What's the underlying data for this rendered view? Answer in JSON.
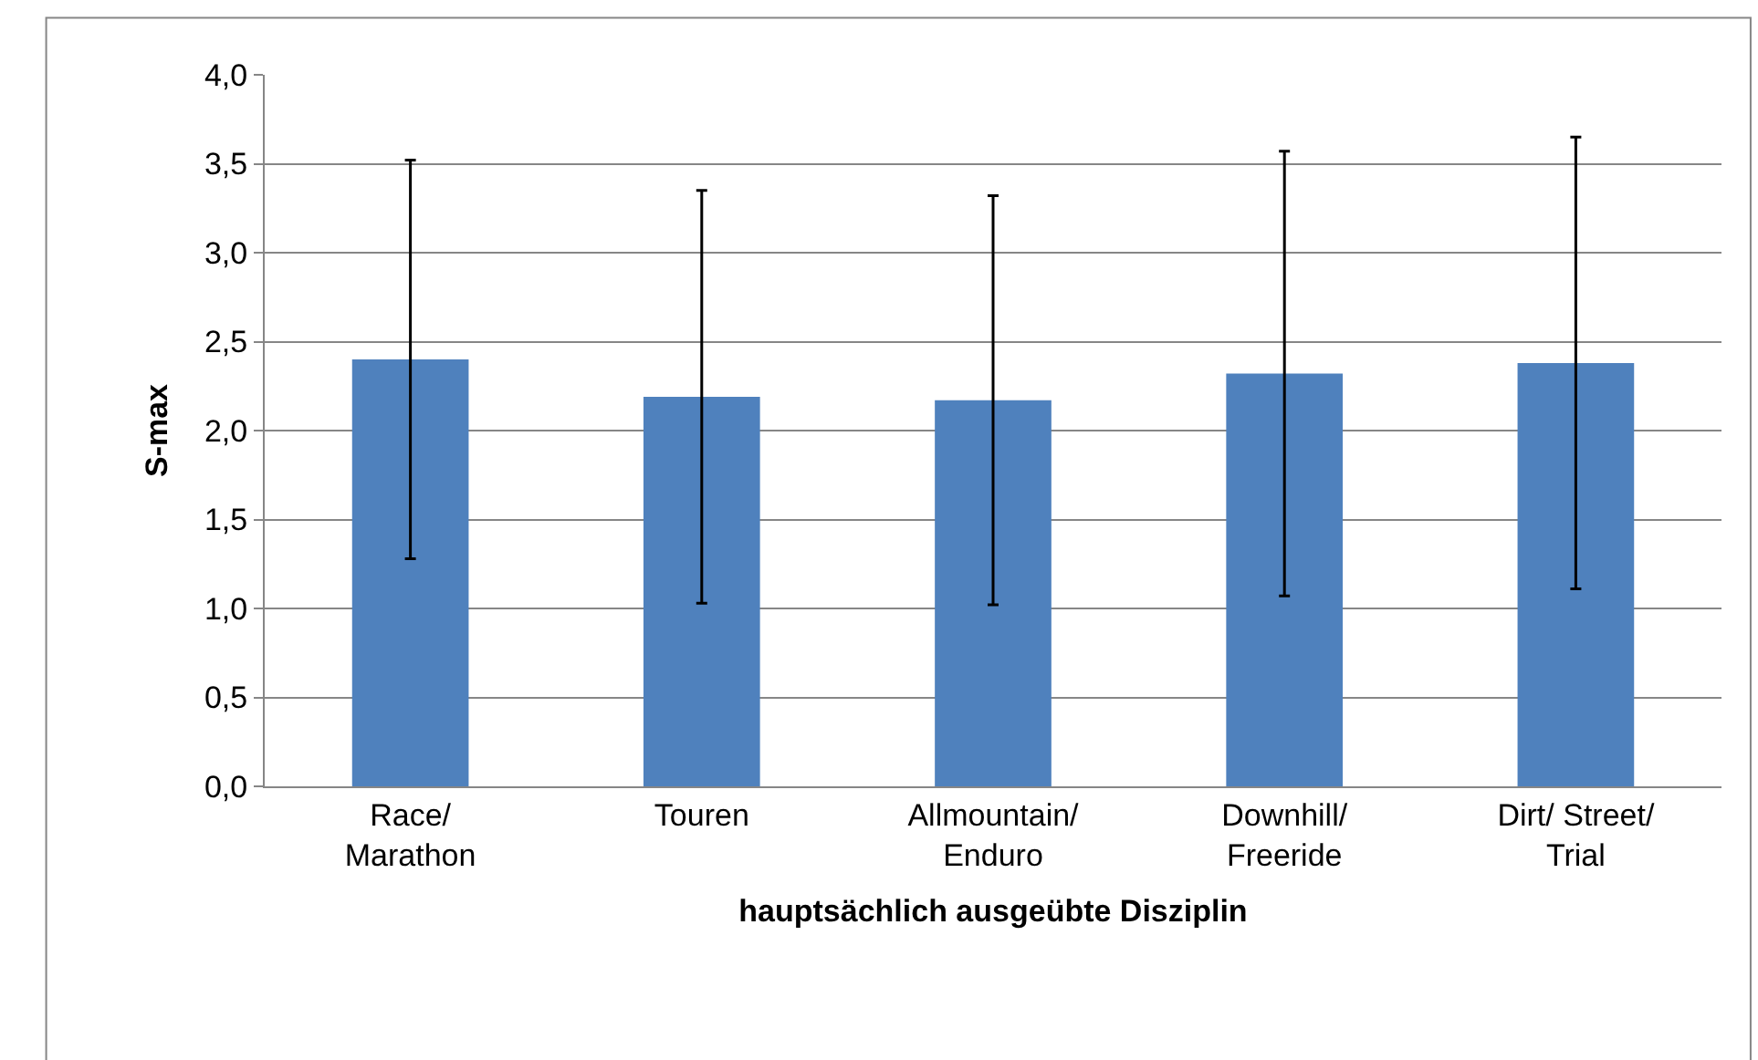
{
  "chart_data": {
    "type": "bar",
    "xlabel": "hauptsächlich ausgeübte Disziplin",
    "ylabel": "S-max",
    "categories": [
      "Race/\nMarathon",
      "Touren",
      "Allmountain/\nEnduro",
      "Downhill/\nFreeride",
      "Dirt/ Street/\nTrial"
    ],
    "values": [
      2.4,
      2.19,
      2.17,
      2.32,
      2.38
    ],
    "errors": [
      1.12,
      1.16,
      1.15,
      1.25,
      1.27
    ],
    "color": "#4f81bd",
    "ylim": [
      0,
      4
    ],
    "yticks": [
      {
        "value": 0,
        "label": "0,0"
      },
      {
        "value": 0.5,
        "label": "0,5"
      },
      {
        "value": 1,
        "label": "1,0"
      },
      {
        "value": 1.5,
        "label": "1,5"
      },
      {
        "value": 2,
        "label": "2,0"
      },
      {
        "value": 2.5,
        "label": "2,5"
      },
      {
        "value": 3,
        "label": "3,0"
      },
      {
        "value": 3.5,
        "label": "3,5"
      },
      {
        "value": 4,
        "label": "4,0"
      }
    ],
    "grid": "y",
    "legend": false
  }
}
